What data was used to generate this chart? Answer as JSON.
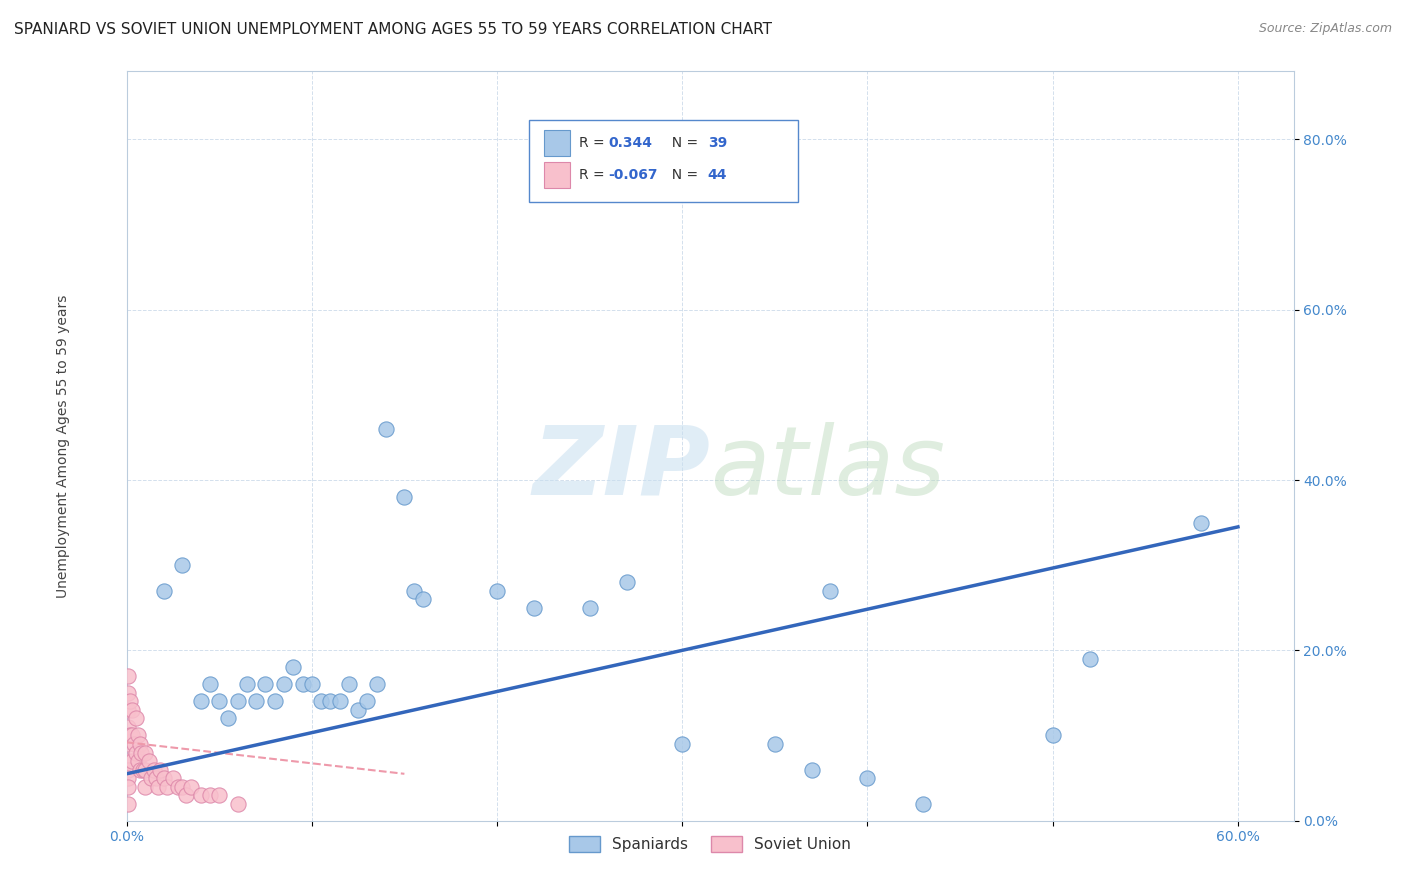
{
  "title": "SPANIARD VS SOVIET UNION UNEMPLOYMENT AMONG AGES 55 TO 59 YEARS CORRELATION CHART",
  "source": "Source: ZipAtlas.com",
  "ylabel": "Unemployment Among Ages 55 to 59 years",
  "xlim": [
    0.0,
    0.63
  ],
  "ylim": [
    0.0,
    0.88
  ],
  "xticks": [
    0.0,
    0.1,
    0.2,
    0.3,
    0.4,
    0.5,
    0.6
  ],
  "yticks": [
    0.0,
    0.2,
    0.4,
    0.6,
    0.8
  ],
  "xtick_labels_show": [
    "0.0%",
    "",
    "",
    "",
    "",
    "",
    "60.0%"
  ],
  "ytick_labels_show": [
    "0.0%",
    "20.0%",
    "40.0%",
    "60.0%",
    "80.0%"
  ],
  "spaniards_R": 0.344,
  "spaniards_N": 39,
  "soviet_R": -0.067,
  "soviet_N": 44,
  "spaniards_color": "#a8c8e8",
  "spaniards_edge_color": "#6699cc",
  "soviet_color": "#f8c0cc",
  "soviet_edge_color": "#dd88aa",
  "trend_spaniards_color": "#3366bb",
  "trend_soviet_color": "#ee99aa",
  "background_color": "#ffffff",
  "grid_color": "#c8d8e8",
  "watermark_color": "#ddeeff",
  "legend_label_1": "Spaniards",
  "legend_label_2": "Soviet Union",
  "spaniards_x": [
    0.02,
    0.03,
    0.04,
    0.045,
    0.05,
    0.055,
    0.06,
    0.065,
    0.07,
    0.075,
    0.08,
    0.085,
    0.09,
    0.095,
    0.1,
    0.105,
    0.11,
    0.115,
    0.12,
    0.125,
    0.13,
    0.135,
    0.14,
    0.15,
    0.155,
    0.16,
    0.2,
    0.22,
    0.25,
    0.27,
    0.3,
    0.35,
    0.37,
    0.38,
    0.4,
    0.43,
    0.5,
    0.52,
    0.58
  ],
  "spaniards_y": [
    0.27,
    0.3,
    0.14,
    0.16,
    0.14,
    0.12,
    0.14,
    0.16,
    0.14,
    0.16,
    0.14,
    0.16,
    0.18,
    0.16,
    0.16,
    0.14,
    0.14,
    0.14,
    0.16,
    0.13,
    0.14,
    0.16,
    0.46,
    0.38,
    0.27,
    0.26,
    0.27,
    0.25,
    0.25,
    0.28,
    0.09,
    0.09,
    0.06,
    0.27,
    0.05,
    0.02,
    0.1,
    0.19,
    0.35
  ],
  "soviet_x": [
    0.001,
    0.001,
    0.001,
    0.001,
    0.001,
    0.001,
    0.001,
    0.001,
    0.001,
    0.001,
    0.002,
    0.002,
    0.003,
    0.003,
    0.003,
    0.004,
    0.005,
    0.005,
    0.006,
    0.006,
    0.007,
    0.007,
    0.008,
    0.009,
    0.01,
    0.01,
    0.01,
    0.012,
    0.013,
    0.015,
    0.016,
    0.017,
    0.018,
    0.02,
    0.022,
    0.025,
    0.028,
    0.03,
    0.032,
    0.035,
    0.04,
    0.045,
    0.05,
    0.06
  ],
  "soviet_y": [
    0.17,
    0.15,
    0.13,
    0.11,
    0.09,
    0.07,
    0.06,
    0.05,
    0.04,
    0.02,
    0.14,
    0.1,
    0.13,
    0.1,
    0.07,
    0.09,
    0.12,
    0.08,
    0.1,
    0.07,
    0.09,
    0.06,
    0.08,
    0.06,
    0.08,
    0.06,
    0.04,
    0.07,
    0.05,
    0.06,
    0.05,
    0.04,
    0.06,
    0.05,
    0.04,
    0.05,
    0.04,
    0.04,
    0.03,
    0.04,
    0.03,
    0.03,
    0.03,
    0.02
  ],
  "title_fontsize": 11,
  "axis_label_fontsize": 10,
  "tick_fontsize": 10
}
